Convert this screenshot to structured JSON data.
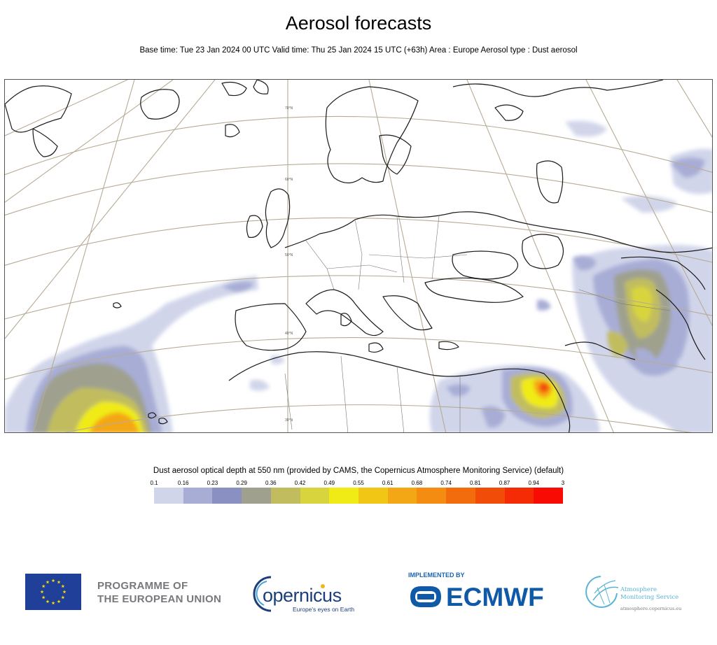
{
  "header": {
    "title": "Aerosol forecasts",
    "subtitle": "Base time: Tue 23 Jan 2024 00 UTC Valid time: Thu 25 Jan 2024 15 UTC (+63h) Area : Europe Aerosol type : Dust aerosol"
  },
  "map": {
    "latitude_labels": [
      "70°N",
      "60°N",
      "50°N",
      "40°N",
      "30°N"
    ],
    "colors": {
      "coast": "#1a1a1a",
      "graticule": "#b8ab95",
      "border": "#777777"
    }
  },
  "legend": {
    "title": "Dust aerosol optical depth at 550 nm (provided by CAMS, the Copernicus Atmosphere Monitoring Service) (default)",
    "ticks": [
      "0.1",
      "0.16",
      "0.23",
      "0.29",
      "0.36",
      "0.42",
      "0.49",
      "0.55",
      "0.61",
      "0.68",
      "0.74",
      "0.81",
      "0.87",
      "0.94",
      "3"
    ],
    "colors": [
      "#d0d5ea",
      "#a8add6",
      "#8a90c1",
      "#9fa18e",
      "#c1bd5e",
      "#d8d43e",
      "#f0eb17",
      "#f2c615",
      "#f4a714",
      "#f38c11",
      "#f26b0c",
      "#f24c09",
      "#f42b05",
      "#f70b02"
    ]
  },
  "footer": {
    "programme": [
      "PROGRAMME OF",
      "THE EUROPEAN UNION"
    ],
    "copernicus": "opernicus",
    "copernicus_tagline": "Europe's eyes on Earth",
    "implemented_by": "IMPLEMENTED BY",
    "ecmwf": "ECMWF",
    "ams_line1": "Atmosphere",
    "ams_line2": "Monitoring Service",
    "ams_url": "atmosphere.copernicus.eu"
  }
}
